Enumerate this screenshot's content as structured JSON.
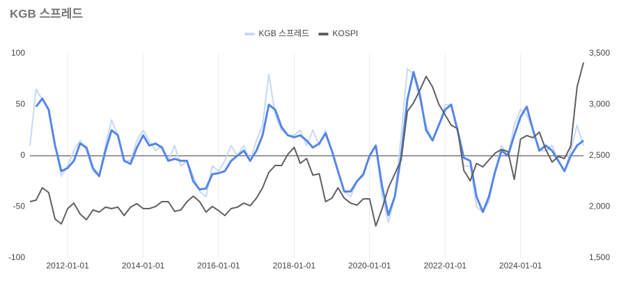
{
  "chart_data": {
    "type": "line",
    "title": "KGB 스프레드",
    "x": [
      "2011-01-01",
      "2011-03-01",
      "2011-05-01",
      "2011-07-01",
      "2011-09-01",
      "2011-11-01",
      "2012-01-01",
      "2012-03-01",
      "2012-05-01",
      "2012-07-01",
      "2012-09-01",
      "2012-11-01",
      "2013-01-01",
      "2013-03-01",
      "2013-05-01",
      "2013-07-01",
      "2013-09-01",
      "2013-11-01",
      "2014-01-01",
      "2014-03-01",
      "2014-05-01",
      "2014-07-01",
      "2014-09-01",
      "2014-11-01",
      "2015-01-01",
      "2015-03-01",
      "2015-05-01",
      "2015-07-01",
      "2015-09-01",
      "2015-11-01",
      "2016-01-01",
      "2016-03-01",
      "2016-05-01",
      "2016-07-01",
      "2016-09-01",
      "2016-11-01",
      "2017-01-01",
      "2017-03-01",
      "2017-05-01",
      "2017-07-01",
      "2017-09-01",
      "2017-11-01",
      "2018-01-01",
      "2018-03-01",
      "2018-05-01",
      "2018-07-01",
      "2018-09-01",
      "2018-11-01",
      "2019-01-01",
      "2019-03-01",
      "2019-05-01",
      "2019-07-01",
      "2019-09-01",
      "2019-11-01",
      "2020-01-01",
      "2020-03-01",
      "2020-05-01",
      "2020-07-01",
      "2020-09-01",
      "2020-11-01",
      "2021-01-01",
      "2021-03-01",
      "2021-05-01",
      "2021-07-01",
      "2021-09-01",
      "2021-11-01",
      "2022-01-01",
      "2022-03-01",
      "2022-05-01",
      "2022-07-01",
      "2022-09-01",
      "2022-11-01",
      "2023-01-01",
      "2023-03-01",
      "2023-05-01",
      "2023-07-01",
      "2023-09-01",
      "2023-11-01",
      "2024-01-01",
      "2024-03-01",
      "2024-05-01",
      "2024-07-01",
      "2024-09-01",
      "2024-11-01",
      "2025-01-01",
      "2025-03-01",
      "2025-05-01",
      "2025-07-01",
      "2025-09-01"
    ],
    "series": [
      {
        "name": "KGB 스프레드",
        "color": "#c5d9f5",
        "width": 2,
        "values": [
          10,
          65,
          55,
          45,
          10,
          -20,
          -10,
          5,
          15,
          5,
          -15,
          -20,
          10,
          35,
          20,
          -5,
          -5,
          15,
          25,
          15,
          5,
          10,
          -5,
          10,
          -10,
          -5,
          -20,
          -35,
          -40,
          -10,
          -15,
          -5,
          10,
          0,
          10,
          -5,
          15,
          30,
          80,
          40,
          25,
          20,
          20,
          25,
          10,
          25,
          10,
          25,
          5,
          -15,
          -35,
          -40,
          -25,
          -20,
          0,
          10,
          -40,
          -65,
          -40,
          20,
          85,
          80,
          55,
          30,
          15,
          30,
          50,
          50,
          25,
          -10,
          -10,
          -50,
          -55,
          -45,
          -15,
          10,
          0,
          30,
          45,
          40,
          25,
          5,
          5,
          10,
          -5,
          -15,
          5,
          30,
          10
        ]
      },
      {
        "color": "#5585e8",
        "width": 3,
        "values": [
          null,
          48,
          56,
          45,
          10,
          -15,
          -12,
          -5,
          12,
          8,
          -12,
          -20,
          5,
          25,
          20,
          -5,
          -8,
          8,
          20,
          10,
          12,
          8,
          -5,
          -3,
          -5,
          -5,
          -25,
          -33,
          -32,
          -18,
          -17,
          -15,
          -5,
          0,
          5,
          -5,
          5,
          20,
          50,
          45,
          28,
          20,
          18,
          20,
          15,
          8,
          12,
          22,
          5,
          -15,
          -35,
          -35,
          -25,
          -18,
          0,
          10,
          -30,
          -58,
          -40,
          0,
          55,
          82,
          60,
          25,
          15,
          30,
          45,
          50,
          25,
          -2,
          -5,
          -40,
          -55,
          -40,
          -15,
          5,
          0,
          20,
          38,
          48,
          25,
          5,
          10,
          5,
          -5,
          -15,
          0,
          10,
          15
        ]
      },
      {
        "name": "KOSPI",
        "color": "#5f5f5f",
        "width": 2,
        "axis": "y2",
        "values": [
          2051,
          2065,
          2187,
          2140,
          1880,
          1833,
          1983,
          2037,
          1929,
          1874,
          1970,
          1949,
          1997,
          1983,
          1997,
          1915,
          1997,
          2031,
          1983,
          1983,
          2004,
          2051,
          2051,
          1956,
          1970,
          2051,
          2105,
          2051,
          1949,
          2004,
          1963,
          1915,
          1983,
          1997,
          2037,
          2010,
          2085,
          2187,
          2337,
          2405,
          2405,
          2514,
          2582,
          2425,
          2473,
          2310,
          2323,
          2051,
          2085,
          2187,
          2085,
          2037,
          2017,
          2078,
          2078,
          1813,
          1983,
          2187,
          2323,
          2459,
          2935,
          3017,
          3140,
          3276,
          3174,
          3004,
          2901,
          2799,
          2765,
          2357,
          2255,
          2425,
          2391,
          2459,
          2527,
          2561,
          2541,
          2269,
          2663,
          2697,
          2677,
          2731,
          2561,
          2439,
          2493,
          2473,
          2595,
          3174,
          3412
        ]
      }
    ],
    "xticks": [
      "2012-01-01",
      "2014-01-01",
      "2016-01-01",
      "2018-01-01",
      "2020-01-01",
      "2022-01-01",
      "2024-01-01"
    ],
    "ylim": [
      -100,
      100
    ],
    "yticks": [
      -100,
      -50,
      0,
      50,
      100
    ],
    "y2lim": [
      1500,
      3500
    ],
    "y2ticks": [
      {
        "value": 1500,
        "label": "1,500"
      },
      {
        "value": 2000,
        "label": "2,000"
      },
      {
        "value": 2500,
        "label": "2,500"
      },
      {
        "value": 3000,
        "label": "3,000"
      },
      {
        "value": 3500,
        "label": "3,500"
      }
    ],
    "legend": "top"
  }
}
